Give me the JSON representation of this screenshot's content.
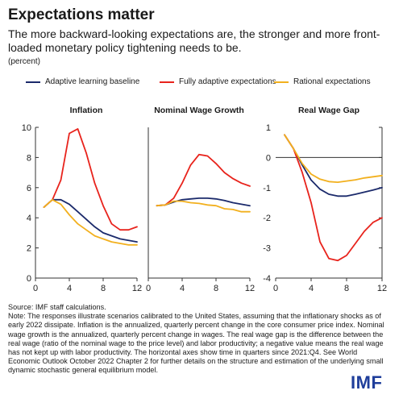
{
  "header": {
    "title": "Expectations matter",
    "subtitle": "The more backward-looking expectations are, the stronger and more front-loaded monetary policy tightening needs to be.",
    "unit": "(percent)"
  },
  "legend": [
    {
      "name": "Adaptive learning baseline",
      "color": "#1b2a6b"
    },
    {
      "name": "Fully adaptive expectations",
      "color": "#e8231c"
    },
    {
      "name": "Rational expectations",
      "color": "#f2b01e"
    }
  ],
  "chart_data": [
    {
      "type": "line",
      "title": "Inflation",
      "xlim": [
        0,
        12
      ],
      "ylim": [
        0,
        10
      ],
      "xticks": [
        0,
        4,
        8,
        12
      ],
      "yticks": [
        0,
        2,
        4,
        6,
        8,
        10
      ],
      "x": [
        1,
        2,
        3,
        4,
        5,
        6,
        7,
        8,
        9,
        10,
        11,
        12
      ],
      "series": [
        {
          "name": "Adaptive learning baseline",
          "values": [
            4.7,
            5.2,
            5.2,
            4.9,
            4.4,
            3.9,
            3.4,
            3.0,
            2.8,
            2.6,
            2.5,
            2.4
          ]
        },
        {
          "name": "Fully adaptive expectations",
          "values": [
            4.7,
            5.2,
            6.5,
            9.6,
            9.9,
            8.3,
            6.3,
            4.8,
            3.6,
            3.2,
            3.2,
            3.4
          ]
        },
        {
          "name": "Rational expectations",
          "values": [
            4.7,
            5.2,
            4.9,
            4.2,
            3.6,
            3.2,
            2.8,
            2.6,
            2.4,
            2.3,
            2.2,
            2.2
          ]
        }
      ]
    },
    {
      "type": "line",
      "title": "Nominal Wage Growth",
      "xlim": [
        0,
        12
      ],
      "ylim": [
        0,
        10
      ],
      "xticks": [
        0,
        4,
        8,
        12
      ],
      "yticks": [],
      "x": [
        1,
        2,
        3,
        4,
        5,
        6,
        7,
        8,
        9,
        10,
        11,
        12
      ],
      "series": [
        {
          "name": "Adaptive learning baseline",
          "values": [
            4.8,
            4.85,
            5.05,
            5.2,
            5.25,
            5.3,
            5.3,
            5.25,
            5.15,
            5.0,
            4.9,
            4.8
          ]
        },
        {
          "name": "Fully adaptive expectations",
          "values": [
            4.8,
            4.85,
            5.3,
            6.3,
            7.5,
            8.2,
            8.1,
            7.6,
            7.0,
            6.6,
            6.3,
            6.1
          ]
        },
        {
          "name": "Rational expectations",
          "values": [
            4.8,
            4.85,
            5.1,
            5.1,
            5.0,
            4.95,
            4.85,
            4.8,
            4.6,
            4.55,
            4.4,
            4.4
          ]
        }
      ]
    },
    {
      "type": "line",
      "title": "Real Wage Gap",
      "xlim": [
        0,
        12
      ],
      "ylim": [
        -4,
        1
      ],
      "xticks": [
        0,
        4,
        8,
        12
      ],
      "yticks": [
        -4,
        -3,
        -2,
        -1,
        0,
        1
      ],
      "yaxis_position": "right",
      "x": [
        1,
        2,
        3,
        4,
        5,
        6,
        7,
        8,
        9,
        10,
        11,
        12
      ],
      "series": [
        {
          "name": "Adaptive learning baseline",
          "values": [
            0.75,
            0.3,
            -0.25,
            -0.75,
            -1.05,
            -1.22,
            -1.28,
            -1.28,
            -1.22,
            -1.15,
            -1.08,
            -1.0
          ]
        },
        {
          "name": "Fully adaptive expectations",
          "values": [
            0.75,
            0.3,
            -0.5,
            -1.5,
            -2.8,
            -3.35,
            -3.42,
            -3.25,
            -2.85,
            -2.45,
            -2.15,
            -2.0
          ]
        },
        {
          "name": "Rational expectations",
          "values": [
            0.75,
            0.3,
            -0.2,
            -0.55,
            -0.72,
            -0.8,
            -0.82,
            -0.78,
            -0.74,
            -0.68,
            -0.64,
            -0.6
          ]
        }
      ]
    }
  ],
  "footer": {
    "source": "Source: IMF staff calculations.",
    "note": "Note: The responses illustrate scenarios calibrated to the United States, assuming that the inflationary shocks as of early 2022 dissipate. Inflation is the annualized, quarterly percent change in the core consumer price index. Nominal wage growth is the annualized, quarterly percent change in wages. The real wage gap is the difference between the real wage (ratio of the nominal wage to the price level) and labor productivity; a negative value means the real wage has not kept up with labor productivity. The horizontal axes show time in quarters since 2021:Q4. See World Economic Outlook October 2022 Chapter 2 for further details on the structure and estimation of the underlying small dynamic stochastic general equilibrium model.",
    "logo": "IMF"
  }
}
